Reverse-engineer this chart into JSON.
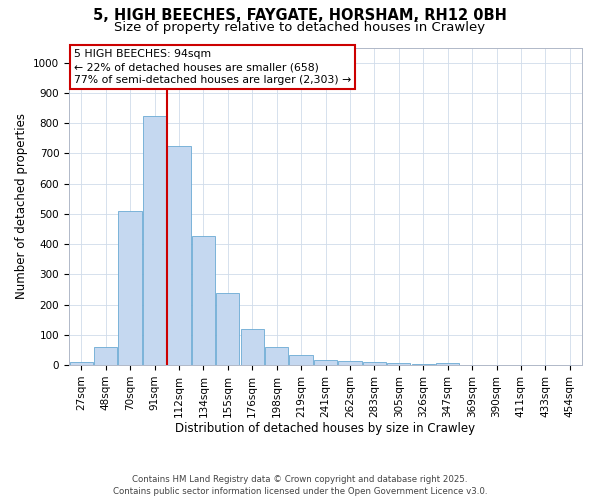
{
  "title1": "5, HIGH BEECHES, FAYGATE, HORSHAM, RH12 0BH",
  "title2": "Size of property relative to detached houses in Crawley",
  "xlabel": "Distribution of detached houses by size in Crawley",
  "ylabel": "Number of detached properties",
  "categories": [
    "27sqm",
    "48sqm",
    "70sqm",
    "91sqm",
    "112sqm",
    "134sqm",
    "155sqm",
    "176sqm",
    "198sqm",
    "219sqm",
    "241sqm",
    "262sqm",
    "283sqm",
    "305sqm",
    "326sqm",
    "347sqm",
    "369sqm",
    "390sqm",
    "411sqm",
    "433sqm",
    "454sqm"
  ],
  "values": [
    10,
    58,
    510,
    825,
    725,
    425,
    238,
    118,
    58,
    32,
    15,
    12,
    10,
    5,
    2,
    8,
    0,
    0,
    0,
    0,
    0
  ],
  "bar_color": "#c5d8f0",
  "bar_edge_color": "#6aaad4",
  "grid_color": "#d0dcea",
  "vline_x_bin": 3,
  "vline_color": "#cc0000",
  "annotation_text": "5 HIGH BEECHES: 94sqm\n← 22% of detached houses are smaller (658)\n77% of semi-detached houses are larger (2,303) →",
  "annotation_box_color": "#ffffff",
  "annotation_box_edge": "#cc0000",
  "ylim": [
    0,
    1050
  ],
  "yticks": [
    0,
    100,
    200,
    300,
    400,
    500,
    600,
    700,
    800,
    900,
    1000
  ],
  "footer": "Contains HM Land Registry data © Crown copyright and database right 2025.\nContains public sector information licensed under the Open Government Licence v3.0.",
  "title1_fontsize": 10.5,
  "title2_fontsize": 9.5,
  "axis_label_fontsize": 8.5,
  "tick_fontsize": 7.5,
  "annotation_fontsize": 7.8,
  "footer_fontsize": 6.2
}
